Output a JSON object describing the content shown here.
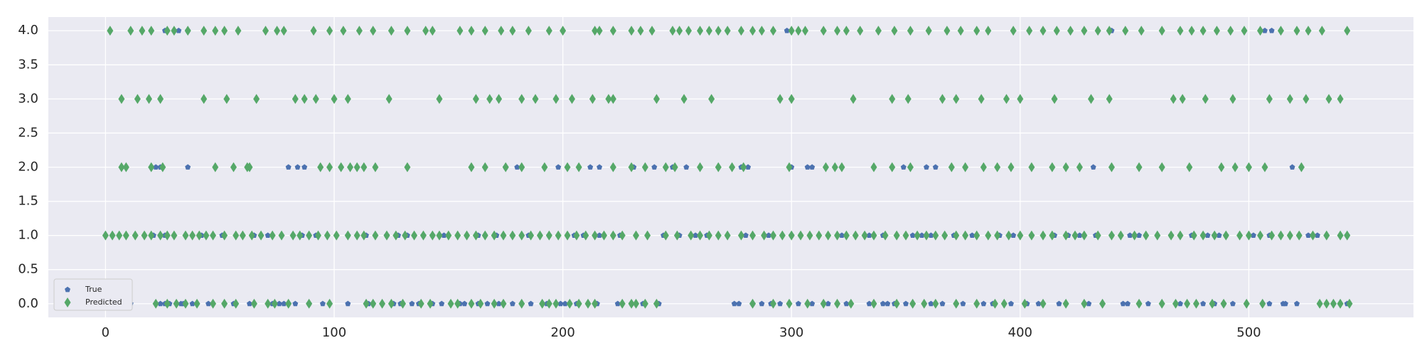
{
  "chart_data": {
    "type": "scatter",
    "title": "",
    "xlabel": "",
    "ylabel": "",
    "xlim": [
      -25,
      572
    ],
    "ylim": [
      -0.2,
      4.2
    ],
    "xticks": [
      0,
      100,
      200,
      300,
      400,
      500
    ],
    "yticks": [
      0.0,
      0.5,
      1.0,
      1.5,
      2.0,
      2.5,
      3.0,
      3.5,
      4.0
    ],
    "xtick_labels": [
      "0",
      "100",
      "200",
      "300",
      "400",
      "500"
    ],
    "ytick_labels": [
      "0.0",
      "0.5",
      "1.0",
      "1.5",
      "2.0",
      "2.5",
      "3.0",
      "3.5",
      "4.0"
    ],
    "grid": true,
    "legend_position": "lower-left",
    "colors": {
      "background": "#eaeaf2",
      "grid": "#ffffff",
      "true": "#4c72b0",
      "predicted": "#55a868"
    },
    "series": [
      {
        "name": "True",
        "marker": "pentagon",
        "levels": {
          "0": [
            11,
            24,
            26,
            28,
            33,
            34,
            38,
            45,
            52,
            56,
            63,
            73,
            76,
            78,
            80,
            83,
            89,
            95,
            106,
            115,
            117,
            126,
            129,
            134,
            137,
            143,
            147,
            155,
            157,
            163,
            167,
            172,
            178,
            186,
            193,
            199,
            201,
            206,
            215,
            224,
            230,
            235,
            242,
            275,
            277,
            283,
            287,
            291,
            295,
            303,
            309,
            316,
            324,
            334,
            340,
            342,
            345,
            350,
            361,
            366,
            375,
            384,
            388,
            396,
            403,
            408,
            417,
            430,
            445,
            447,
            456,
            470,
            480,
            485,
            489,
            493,
            506,
            509,
            515,
            516,
            521,
            543
          ],
          "1": [
            21,
            24,
            26,
            42,
            51,
            65,
            71,
            86,
            92,
            106,
            114,
            123,
            128,
            132,
            139,
            143,
            148,
            163,
            171,
            185,
            194,
            205,
            209,
            216,
            225,
            244,
            251,
            258,
            263,
            280,
            290,
            300,
            322,
            334,
            340,
            353,
            357,
            361,
            371,
            379,
            391,
            397,
            405,
            415,
            421,
            426,
            433,
            440,
            448,
            452,
            466,
            475,
            482,
            485,
            487,
            490,
            502,
            509,
            526,
            530,
            543
          ],
          "2": [
            22,
            24,
            36,
            80,
            84,
            87,
            175,
            180,
            198,
            212,
            216,
            231,
            240,
            248,
            254,
            278,
            281,
            300,
            307,
            309,
            349,
            359,
            363,
            432,
            519
          ],
          "3": [],
          "4": [
            26,
            32,
            36,
            298,
            440,
            507,
            510
          ]
        }
      },
      {
        "name": "Predicted",
        "marker": "thin_diamond",
        "levels": {
          "0": [
            22,
            27,
            31,
            35,
            40,
            47,
            52,
            57,
            65,
            71,
            74,
            80,
            89,
            98,
            114,
            117,
            121,
            125,
            130,
            138,
            142,
            151,
            154,
            160,
            164,
            170,
            174,
            182,
            191,
            194,
            197,
            203,
            207,
            211,
            214,
            226,
            230,
            232,
            236,
            241,
            283,
            292,
            299,
            307,
            314,
            320,
            326,
            336,
            346,
            353,
            358,
            363,
            372,
            381,
            389,
            393,
            402,
            410,
            420,
            428,
            436,
            452,
            462,
            468,
            473,
            477,
            484,
            489,
            499,
            506,
            531,
            534,
            537,
            540,
            544
          ],
          "1": [
            0,
            3,
            6,
            9,
            13,
            17,
            20,
            24,
            27,
            30,
            35,
            38,
            41,
            44,
            47,
            52,
            57,
            60,
            64,
            68,
            73,
            77,
            82,
            85,
            89,
            93,
            97,
            101,
            106,
            110,
            113,
            118,
            123,
            127,
            131,
            135,
            139,
            143,
            146,
            150,
            154,
            158,
            162,
            166,
            170,
            174,
            178,
            182,
            186,
            190,
            194,
            198,
            202,
            206,
            210,
            214,
            218,
            222,
            226,
            232,
            237,
            245,
            250,
            256,
            260,
            264,
            268,
            272,
            278,
            283,
            288,
            292,
            296,
            300,
            304,
            308,
            312,
            316,
            320,
            324,
            328,
            332,
            336,
            341,
            346,
            350,
            355,
            359,
            363,
            367,
            372,
            376,
            381,
            386,
            390,
            395,
            400,
            405,
            410,
            414,
            420,
            424,
            428,
            434,
            440,
            444,
            450,
            455,
            460,
            466,
            470,
            476,
            480,
            485,
            490,
            496,
            500,
            505,
            510,
            514,
            518,
            522,
            528,
            534,
            540,
            543
          ],
          "2": [
            7,
            9,
            20,
            25,
            48,
            56,
            62,
            63,
            94,
            98,
            103,
            107,
            110,
            113,
            118,
            132,
            160,
            166,
            175,
            182,
            192,
            202,
            207,
            222,
            230,
            236,
            245,
            249,
            260,
            268,
            274,
            279,
            299,
            315,
            319,
            322,
            336,
            344,
            352,
            370,
            376,
            384,
            390,
            396,
            405,
            414,
            420,
            426,
            440,
            452,
            462,
            474,
            488,
            494,
            500,
            507,
            523
          ],
          "3": [
            7,
            14,
            19,
            24,
            43,
            53,
            66,
            83,
            87,
            92,
            100,
            106,
            124,
            146,
            162,
            168,
            172,
            182,
            188,
            197,
            204,
            213,
            220,
            222,
            241,
            253,
            265,
            295,
            300,
            327,
            344,
            351,
            366,
            372,
            383,
            394,
            400,
            415,
            431,
            439,
            467,
            471,
            481,
            493,
            509,
            518,
            525,
            535,
            540
          ],
          "4": [
            2,
            11,
            16,
            20,
            27,
            30,
            36,
            43,
            48,
            52,
            58,
            70,
            75,
            78,
            91,
            98,
            104,
            111,
            117,
            125,
            132,
            140,
            143,
            155,
            160,
            166,
            173,
            178,
            185,
            194,
            200,
            214,
            216,
            222,
            230,
            234,
            239,
            248,
            251,
            255,
            260,
            264,
            268,
            272,
            278,
            283,
            287,
            292,
            300,
            303,
            306,
            314,
            320,
            324,
            330,
            338,
            345,
            352,
            360,
            368,
            374,
            381,
            386,
            397,
            404,
            410,
            416,
            422,
            428,
            434,
            439,
            446,
            453,
            462,
            470,
            475,
            480,
            486,
            492,
            498,
            505,
            514,
            521,
            526,
            532,
            543
          ]
        }
      }
    ]
  }
}
